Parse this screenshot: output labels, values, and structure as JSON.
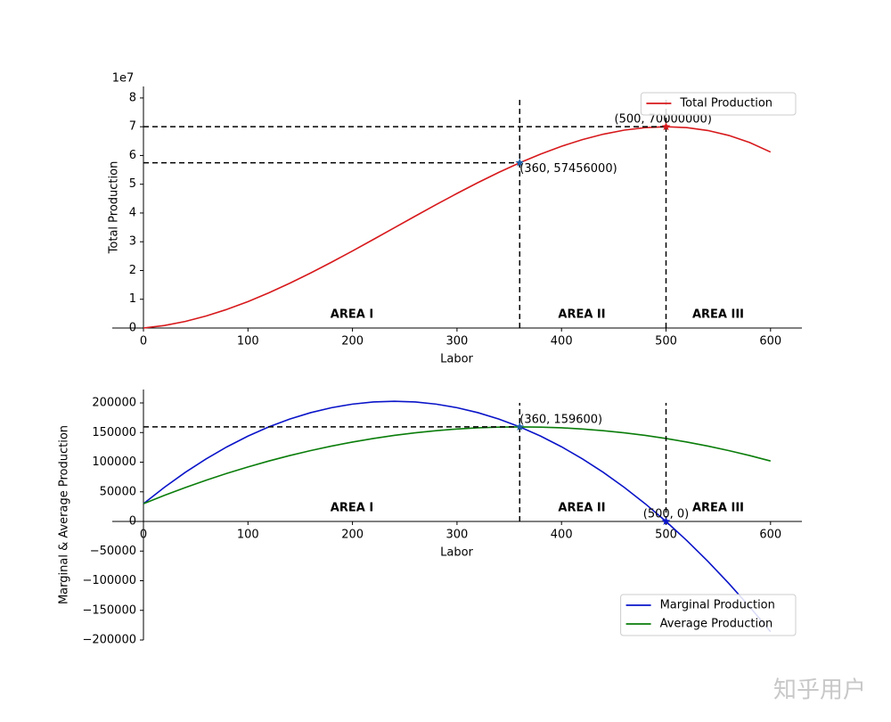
{
  "chart_data": [
    {
      "type": "line",
      "ylabel": "Total Production",
      "xlabel": "Labor",
      "offset_text": "1e7",
      "x": [
        0,
        20,
        40,
        60,
        80,
        100,
        120,
        140,
        160,
        180,
        200,
        220,
        240,
        260,
        280,
        300,
        320,
        340,
        360,
        380,
        400,
        420,
        440,
        460,
        480,
        500,
        520,
        540,
        560,
        580,
        600
      ],
      "series": [
        {
          "name": "Total Production",
          "color": "#d7191c",
          "values": [
            0,
            880000,
            2288000,
            4176000,
            6496000,
            9200000,
            12240000,
            15568000,
            19136000,
            22896000,
            26800000,
            30800000,
            34848000,
            38896000,
            42896000,
            46800000,
            50560000,
            54128000,
            57456000,
            60496000,
            63200000,
            65520000,
            67408000,
            68816000,
            69696000,
            70000000,
            69680000,
            68688000,
            66976000,
            64496000,
            61200000
          ]
        }
      ],
      "xlim": [
        0,
        630
      ],
      "ylim": [
        0,
        84000000
      ],
      "xticks": [
        0,
        100,
        200,
        300,
        400,
        500,
        600
      ],
      "yticks": [
        0,
        {
          "value": 10000000,
          "label": "1"
        },
        {
          "value": 20000000,
          "label": "2"
        },
        {
          "value": 30000000,
          "label": "3"
        },
        {
          "value": 40000000,
          "label": "4"
        },
        {
          "value": 50000000,
          "label": "5"
        },
        {
          "value": 60000000,
          "label": "6"
        },
        {
          "value": 70000000,
          "label": "7"
        },
        {
          "value": 80000000,
          "label": "8"
        }
      ],
      "hlines": [
        {
          "y": 70000000,
          "xmin": 0,
          "xmax": 500
        },
        {
          "y": 57456000,
          "xmin": 0,
          "xmax": 360
        }
      ],
      "vlines": [
        {
          "x": 360,
          "ymin": 0,
          "ymax": 80000000
        },
        {
          "x": 500,
          "ymin": 0,
          "ymax": 80000000
        }
      ],
      "points": [
        {
          "x": 360,
          "y": 57456000,
          "label": "(360, 57456000)",
          "color": "#1f5fa8"
        },
        {
          "x": 500,
          "y": 70000000,
          "label": "(500, 70000000)",
          "color": "#d7191c"
        }
      ],
      "area_labels": [
        "AREA I",
        "AREA II",
        "AREA III"
      ],
      "legend": "upper right"
    },
    {
      "type": "line",
      "ylabel": "Marginal & Average Production",
      "xlabel": "Labor",
      "x": [
        0,
        20,
        40,
        60,
        80,
        100,
        120,
        140,
        160,
        180,
        200,
        220,
        240,
        260,
        280,
        300,
        320,
        340,
        360,
        380,
        400,
        420,
        440,
        460,
        480,
        500,
        520,
        540,
        560,
        580,
        600
      ],
      "series": [
        {
          "name": "Marginal Production",
          "color": "#0a14c8",
          "values": [
            30000,
            57600,
            82800,
            105600,
            126000,
            144000,
            159600,
            172800,
            183600,
            192000,
            198000,
            201600,
            202800,
            201600,
            198000,
            192000,
            183600,
            172800,
            159600,
            144000,
            126000,
            105600,
            82800,
            57600,
            30000,
            0,
            -32400,
            -67200,
            -104400,
            -144000,
            -186000
          ]
        },
        {
          "name": "Average Production",
          "color": "#0a7d0a",
          "values": [
            30000,
            44000,
            57200,
            69600,
            81200,
            92000,
            102000,
            111200,
            119600,
            127200,
            134000,
            140000,
            145200,
            149600,
            153200,
            156000,
            158000,
            159200,
            159600,
            159200,
            158000,
            156000,
            153200,
            149600,
            145200,
            140000,
            134000,
            127200,
            119600,
            111200,
            102000
          ]
        }
      ],
      "xlim": [
        0,
        630
      ],
      "ylim": [
        -200000,
        222600
      ],
      "xticks": [
        0,
        100,
        200,
        300,
        400,
        500,
        600
      ],
      "yticks": [
        {
          "value": -200000,
          "label": "−200000"
        },
        {
          "value": -150000,
          "label": "−150000"
        },
        {
          "value": -100000,
          "label": "−100000"
        },
        {
          "value": -50000,
          "label": "−50000"
        },
        0,
        50000,
        100000,
        150000,
        200000
      ],
      "hlines": [
        {
          "y": 159600,
          "xmin": 0,
          "xmax": 360
        }
      ],
      "vlines": [
        {
          "x": 360,
          "ymin": 0,
          "ymax": 200000
        },
        {
          "x": 500,
          "ymin": 0,
          "ymax": 200000
        }
      ],
      "points": [
        {
          "x": 360,
          "y": 159600,
          "label": "(360, 159600)",
          "color": "#1f5fa8"
        },
        {
          "x": 500,
          "y": 0,
          "label": "(500, 0)",
          "color": "#0a14c8"
        }
      ],
      "area_labels": [
        "AREA I",
        "AREA II",
        "AREA III"
      ],
      "legend": "lower right"
    }
  ],
  "watermark": "知乎用户"
}
